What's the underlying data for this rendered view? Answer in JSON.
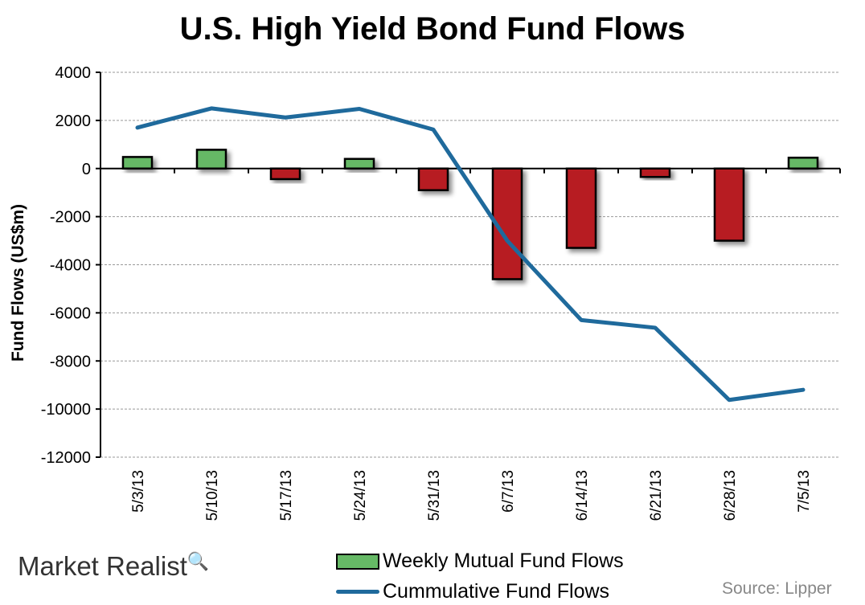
{
  "chart_data": {
    "type": "bar+line",
    "title": "U.S. High Yield Bond Fund Flows",
    "xlabel": "",
    "ylabel": "Fund Flows (US$m)",
    "ylim": [
      -12000,
      4000
    ],
    "yticks": [
      4000,
      2000,
      0,
      -2000,
      -4000,
      -6000,
      -8000,
      -10000,
      -12000
    ],
    "grid": true,
    "legend_position": "bottom",
    "categories": [
      "5/3/13",
      "5/10/13",
      "5/17/13",
      "5/24/13",
      "5/31/13",
      "6/7/13",
      "6/14/13",
      "6/21/13",
      "6/28/13",
      "7/5/13"
    ],
    "series": [
      {
        "name": "Weekly Mutual Fund Flows",
        "type": "bar",
        "values": [
          480,
          780,
          -440,
          400,
          -900,
          -4600,
          -3300,
          -350,
          -3000,
          450
        ],
        "positive_color": "#66b966",
        "negative_color": "#b71c22"
      },
      {
        "name": "Cummulative Fund Flows",
        "type": "line",
        "values": [
          1700,
          2500,
          2120,
          2480,
          1620,
          -3000,
          -6300,
          -6620,
          -9620,
          -9200
        ],
        "color": "#1f6a9c"
      }
    ]
  },
  "branding": {
    "logo": "Market Realist",
    "source": "Source: Lipper"
  }
}
